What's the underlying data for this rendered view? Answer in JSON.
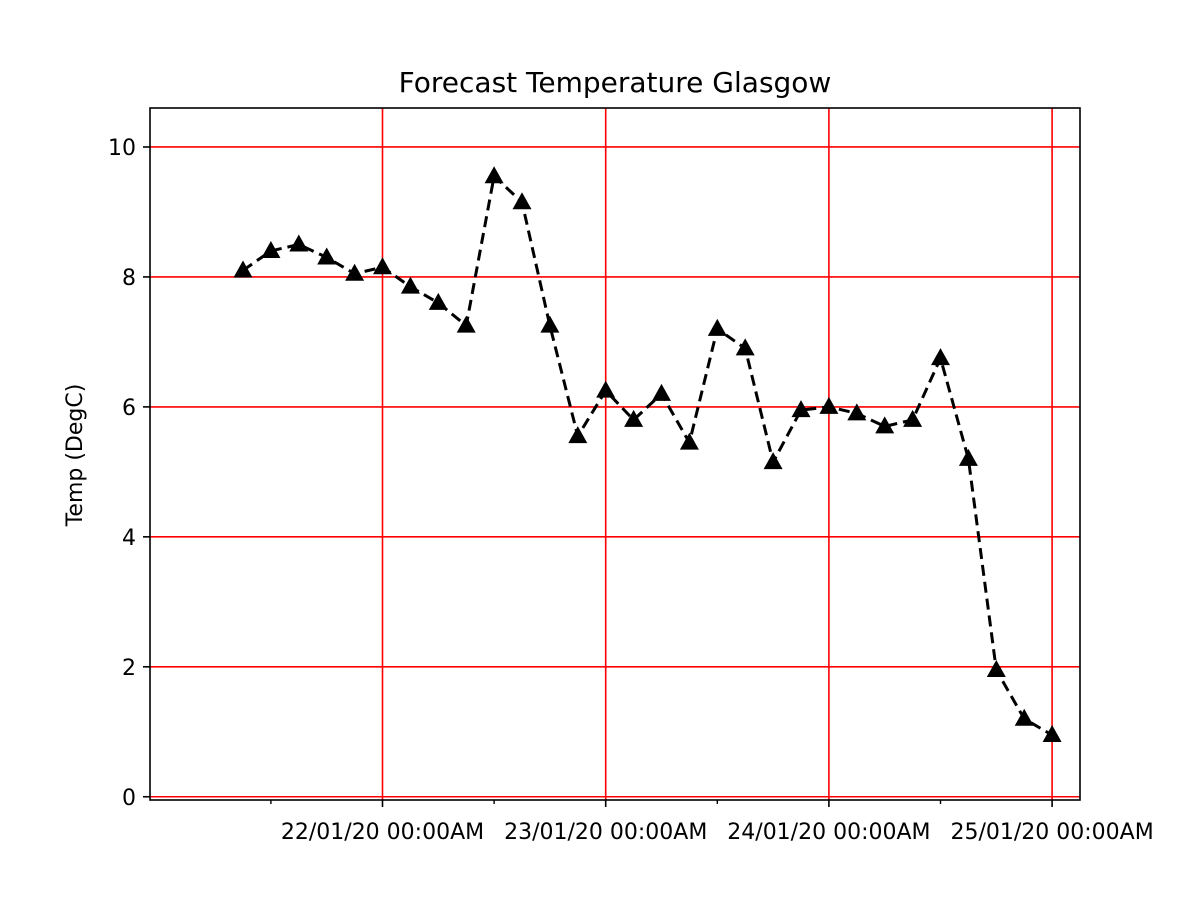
{
  "chart_data": {
    "type": "line",
    "title": "Forecast Temperature Glasgow",
    "xlabel": "",
    "ylabel": "Temp (DegC)",
    "x_tick_labels": [
      {
        "x": 24,
        "label": "22/01/20 00:00AM"
      },
      {
        "x": 48,
        "label": "23/01/20 00:00AM"
      },
      {
        "x": 72,
        "label": "24/01/20 00:00AM"
      },
      {
        "x": 96,
        "label": "25/01/20 00:00AM"
      }
    ],
    "x_minor_ticks": [
      12,
      36,
      60,
      84
    ],
    "xlim": [
      -1,
      99
    ],
    "y_ticks": [
      0,
      2,
      4,
      6,
      8,
      10
    ],
    "ylim": [
      -0.05,
      10.6
    ],
    "grid": true,
    "grid_color": "#ff0000",
    "line_color": "#000000",
    "line_style": "dashed",
    "marker": "triangle",
    "series": [
      {
        "x": [
          9,
          12,
          15,
          18,
          21,
          24,
          27,
          30,
          33,
          36,
          39,
          42,
          45,
          48,
          51,
          54,
          57,
          60,
          63,
          66,
          69,
          72,
          75,
          78,
          81,
          84,
          87,
          90,
          93,
          96
        ],
        "values": [
          8.1,
          8.4,
          8.5,
          8.3,
          8.05,
          8.15,
          7.85,
          7.6,
          7.25,
          9.55,
          9.15,
          7.25,
          5.55,
          6.25,
          5.8,
          6.2,
          5.45,
          7.2,
          6.9,
          5.15,
          5.95,
          6.0,
          5.9,
          5.7,
          5.8,
          6.75,
          5.2,
          1.95,
          1.2,
          0.95
        ]
      }
    ]
  }
}
